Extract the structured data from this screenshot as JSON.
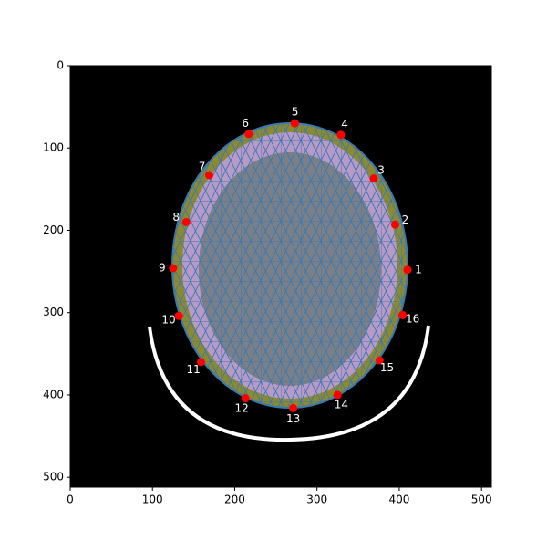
{
  "chart_data": {
    "type": "scatter",
    "x": [
      410,
      395,
      369,
      329,
      273,
      217,
      169,
      141,
      125,
      132,
      159,
      213,
      271,
      325,
      376,
      404
    ],
    "y": [
      248,
      193,
      137,
      84,
      70,
      83,
      133,
      190,
      246,
      304,
      360,
      404,
      416,
      400,
      358,
      303
    ],
    "point_labels": [
      "1",
      "2",
      "3",
      "4",
      "5",
      "6",
      "7",
      "8",
      "9",
      "10",
      "11",
      "12",
      "13",
      "14",
      "15",
      "16"
    ],
    "color": "#ff0000",
    "xlim": [
      0,
      512
    ],
    "ylim": [
      512,
      0
    ],
    "xticks": [
      0,
      100,
      200,
      300,
      400,
      500
    ],
    "yticks": [
      0,
      100,
      200,
      300,
      400,
      500
    ]
  }
}
